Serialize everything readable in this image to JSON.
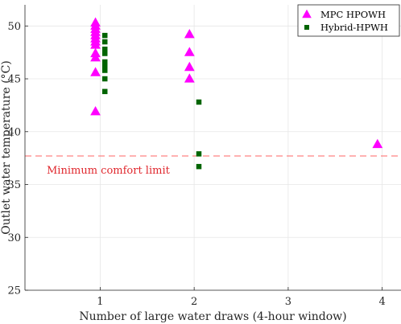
{
  "chart_data": {
    "type": "scatter",
    "xlabel": "Number of large water draws (4-hour window)",
    "ylabel": "Outlet water temperature (°C)",
    "xlim": [
      0.2,
      4.2
    ],
    "ylim": [
      25,
      52
    ],
    "xticks": [
      1,
      2,
      3,
      4
    ],
    "yticks": [
      25,
      30,
      35,
      40,
      45,
      50
    ],
    "grid": true,
    "legend_position": "top-right",
    "series": [
      {
        "name": "MPC HPOWH",
        "marker": "triangle",
        "color": "#ff00ff",
        "points": [
          {
            "x": 0.95,
            "y": 50.3
          },
          {
            "x": 0.95,
            "y": 50.0
          },
          {
            "x": 0.95,
            "y": 49.7
          },
          {
            "x": 0.95,
            "y": 49.4
          },
          {
            "x": 0.95,
            "y": 49.1
          },
          {
            "x": 0.95,
            "y": 48.8
          },
          {
            "x": 0.95,
            "y": 48.5
          },
          {
            "x": 0.95,
            "y": 48.2
          },
          {
            "x": 0.95,
            "y": 47.4
          },
          {
            "x": 0.95,
            "y": 47.0
          },
          {
            "x": 0.95,
            "y": 45.6
          },
          {
            "x": 0.95,
            "y": 41.9
          },
          {
            "x": 1.95,
            "y": 49.2
          },
          {
            "x": 1.95,
            "y": 47.5
          },
          {
            "x": 1.95,
            "y": 46.1
          },
          {
            "x": 1.95,
            "y": 45.0
          },
          {
            "x": 3.95,
            "y": 38.8
          }
        ]
      },
      {
        "name": "Hybrid-HPWH",
        "marker": "square",
        "color": "#006400",
        "points": [
          {
            "x": 1.05,
            "y": 49.1
          },
          {
            "x": 1.05,
            "y": 48.5
          },
          {
            "x": 1.05,
            "y": 47.8
          },
          {
            "x": 1.05,
            "y": 47.4
          },
          {
            "x": 1.05,
            "y": 46.6
          },
          {
            "x": 1.05,
            "y": 46.2
          },
          {
            "x": 1.05,
            "y": 45.8
          },
          {
            "x": 1.05,
            "y": 45.0
          },
          {
            "x": 1.05,
            "y": 43.8
          },
          {
            "x": 2.05,
            "y": 42.8
          },
          {
            "x": 2.05,
            "y": 37.9
          },
          {
            "x": 2.05,
            "y": 36.7
          }
        ]
      }
    ],
    "reference_lines": [
      {
        "axis": "y",
        "value": 37.7,
        "style": "dashed",
        "color": "#ff6666",
        "label": "Minimum comfort limit",
        "label_color": "#e0282e"
      }
    ]
  }
}
